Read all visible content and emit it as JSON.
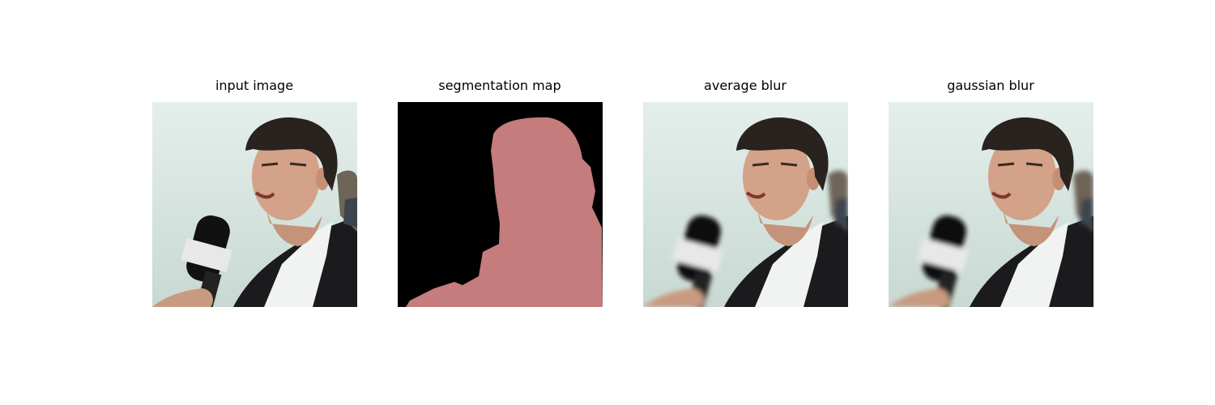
{
  "panels": [
    {
      "title": "input image"
    },
    {
      "title": "segmentation map"
    },
    {
      "title": "average blur"
    },
    {
      "title": "gaussian blur"
    }
  ]
}
